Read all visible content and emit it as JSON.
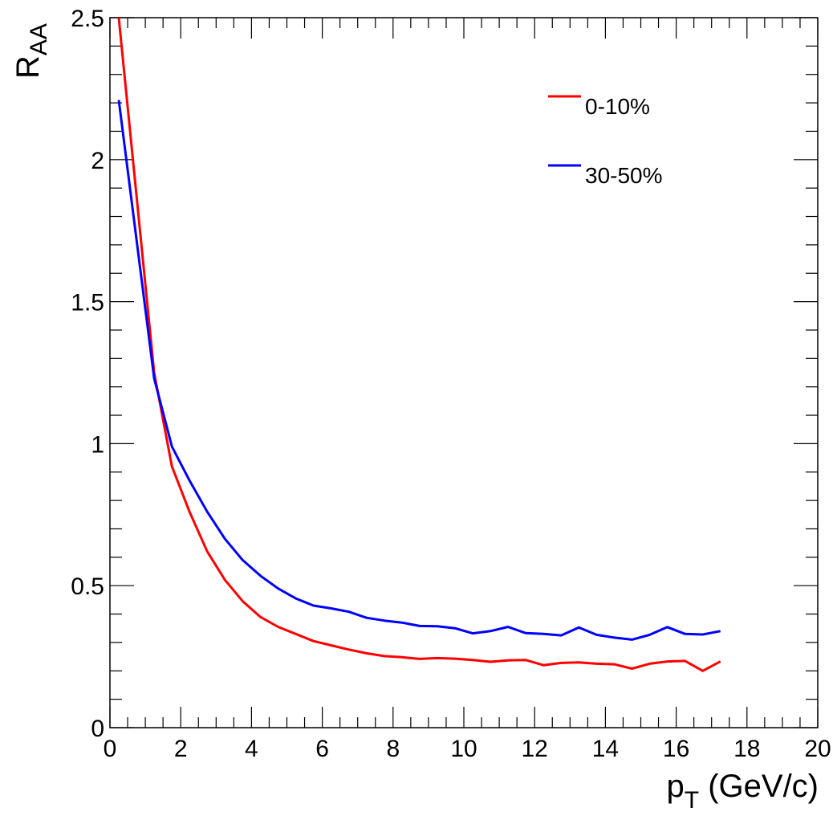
{
  "chart_data": {
    "type": "line",
    "xlabel_main": "p",
    "xlabel_sub": "T",
    "xlabel_unit": " (GeV/c)",
    "ylabel_main": "R",
    "ylabel_sub": "AA",
    "xlim": [
      0,
      20
    ],
    "ylim": [
      0,
      2.5
    ],
    "xticks": [
      "0",
      "2",
      "4",
      "6",
      "8",
      "10",
      "12",
      "14",
      "16",
      "18",
      "20"
    ],
    "yticks": [
      "0",
      "0.5",
      "1",
      "1.5",
      "2",
      "2.5"
    ],
    "legend_position": "top-right",
    "series": [
      {
        "name": "0-10%",
        "color": "#ff0000",
        "x": [
          0.25,
          1.25,
          1.75,
          2.25,
          2.75,
          3.25,
          3.75,
          4.25,
          4.75,
          5.25,
          5.75,
          6.25,
          6.75,
          7.25,
          7.75,
          8.25,
          8.75,
          9.25,
          9.75,
          10.25,
          10.75,
          11.25,
          11.75,
          12.25,
          12.75,
          13.25,
          13.75,
          14.25,
          14.75,
          15.25,
          15.75,
          16.25,
          16.75,
          17.25
        ],
        "y": [
          2.5,
          1.25,
          0.92,
          0.76,
          0.62,
          0.52,
          0.445,
          0.39,
          0.355,
          0.33,
          0.305,
          0.29,
          0.275,
          0.262,
          0.252,
          0.248,
          0.242,
          0.245,
          0.243,
          0.238,
          0.232,
          0.237,
          0.238,
          0.22,
          0.228,
          0.23,
          0.225,
          0.223,
          0.208,
          0.225,
          0.233,
          0.235,
          0.2,
          0.233
        ]
      },
      {
        "name": "30-50%",
        "color": "#0000ff",
        "x": [
          0.25,
          1.25,
          1.75,
          2.25,
          2.75,
          3.25,
          3.75,
          4.25,
          4.75,
          5.25,
          5.75,
          6.25,
          6.75,
          7.25,
          7.75,
          8.25,
          8.75,
          9.25,
          9.75,
          10.25,
          10.75,
          11.25,
          11.75,
          12.25,
          12.75,
          13.25,
          13.75,
          14.25,
          14.75,
          15.25,
          15.75,
          16.25,
          16.75,
          17.25
        ],
        "y": [
          2.21,
          1.23,
          0.99,
          0.87,
          0.76,
          0.665,
          0.59,
          0.535,
          0.49,
          0.455,
          0.43,
          0.42,
          0.408,
          0.387,
          0.377,
          0.37,
          0.358,
          0.357,
          0.35,
          0.332,
          0.34,
          0.355,
          0.333,
          0.33,
          0.325,
          0.353,
          0.327,
          0.317,
          0.31,
          0.327,
          0.354,
          0.33,
          0.328,
          0.34
        ]
      }
    ]
  }
}
